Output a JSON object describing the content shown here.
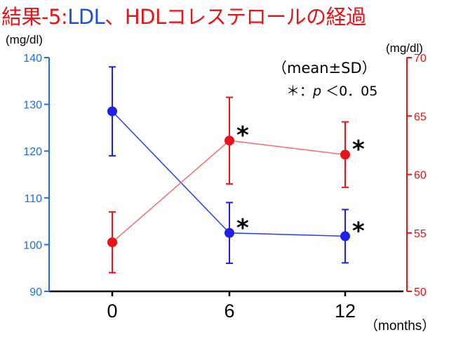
{
  "title": {
    "part1": "結果-5:",
    "part2": "LDL",
    "part3": "、",
    "part4": "HDLコレステロールの経過",
    "color_black": "#e8141b",
    "color_ldl": "#1f4fe0",
    "color_hdl": "#e8141b"
  },
  "chart_data": {
    "type": "line",
    "x": [
      0,
      6,
      12
    ],
    "x_tick_labels": [
      "0",
      "6",
      "12"
    ],
    "xlabel": "（months）",
    "ylabel_left": "(mg/dl)",
    "ylabel_right": "(mg/dl)",
    "ylim_left": [
      90,
      140
    ],
    "ylim_right": [
      50,
      70
    ],
    "yticks_left": [
      "90",
      "100",
      "110",
      "120",
      "130",
      "140"
    ],
    "yticks_right": [
      "50",
      "55",
      "60",
      "65",
      "70"
    ],
    "legend_text": "（mean±SD）",
    "significance_note": "＊：",
    "significance_p": "p",
    "significance_value": "＜0．05",
    "significance_marker": "*",
    "grid": false,
    "series": [
      {
        "name": "LDL",
        "axis": "left",
        "color": "#1f1fe8",
        "line_color": "#2a3cf0",
        "values": [
          128.5,
          102.5,
          101.8
        ],
        "sd": [
          9.5,
          6.5,
          5.7
        ],
        "significant": [
          false,
          true,
          true
        ]
      },
      {
        "name": "HDL",
        "axis": "right",
        "color": "#e8141b",
        "line_color": "#f07070",
        "values": [
          54.2,
          62.9,
          61.7
        ],
        "sd": [
          2.6,
          3.7,
          2.8
        ],
        "significant": [
          false,
          true,
          true
        ]
      }
    ]
  }
}
